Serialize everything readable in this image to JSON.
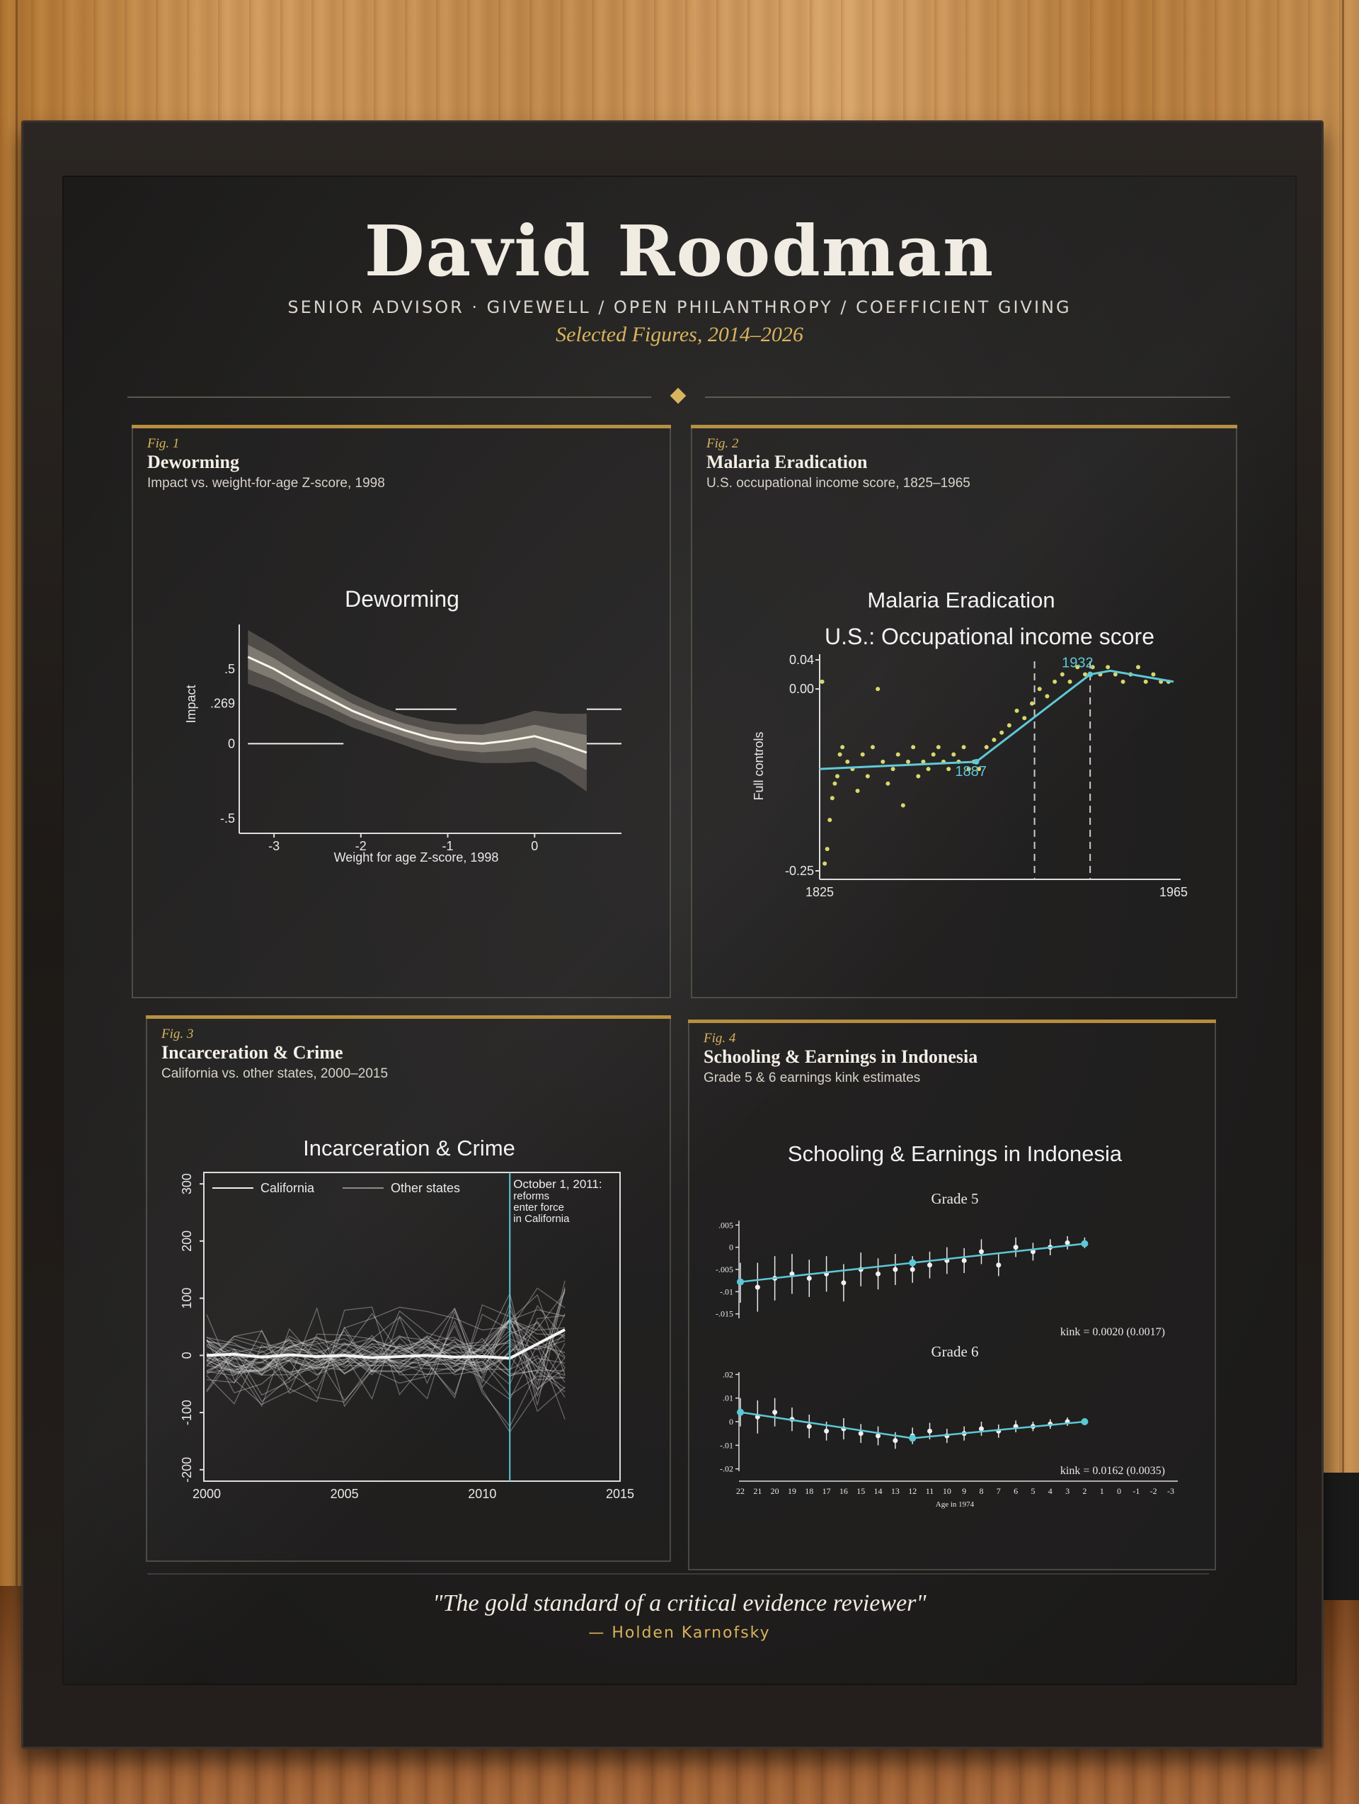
{
  "poster": {
    "name": "David Roodman",
    "role": "SENIOR ADVISOR  ·  GIVEWELL / OPEN PHILANTHROPY / COEFFICIENT GIVING",
    "selected": "Selected Figures, 2014–2026",
    "quote": "\"The gold standard of a critical evidence reviewer\"",
    "attribution": "— Holden Karnofsky"
  },
  "colors": {
    "gold": "#d8b25a",
    "cyan": "#5cc8d6",
    "point_yellow": "#d8d66a"
  },
  "panels": [
    {
      "fig": "Fig. 1",
      "title": "Deworming",
      "subtitle": "Impact vs. weight-for-age Z-score, 1998"
    },
    {
      "fig": "Fig. 2",
      "title": "Malaria Eradication",
      "subtitle": "U.S. occupational income score, 1825–1965"
    },
    {
      "fig": "Fig. 3",
      "title": "Incarceration & Crime",
      "subtitle": "California vs. other states, 2000–2015"
    },
    {
      "fig": "Fig. 4",
      "title": "Schooling & Earnings in Indonesia",
      "subtitle": "Grade 5 & 6 earnings kink estimates"
    }
  ],
  "chart_data": [
    {
      "type": "line",
      "title": "Deworming",
      "xlabel": "Weight for age Z-score, 1998",
      "ylabel": "Impact",
      "xlim": [
        -3.4,
        1.0
      ],
      "ylim": [
        -0.6,
        0.75
      ],
      "xticks": [
        "-3",
        "-2",
        "-1",
        "0"
      ],
      "yticks": [
        ".5",
        ".269",
        "0",
        "-.5"
      ],
      "series": [
        {
          "x": [
            -3.3,
            -3.0,
            -2.7,
            -2.4,
            -2.1,
            -1.8,
            -1.5,
            -1.2,
            -0.9,
            -0.6,
            -0.3,
            0.0,
            0.3,
            0.6
          ],
          "values": [
            0.58,
            0.5,
            0.4,
            0.31,
            0.22,
            0.15,
            0.09,
            0.04,
            0.01,
            0.0,
            0.02,
            0.05,
            0.0,
            -0.06
          ]
        }
      ],
      "reference_segments": [
        {
          "x": [
            -3.3,
            -2.2
          ],
          "y": 0
        },
        {
          "x": [
            -1.6,
            -0.9
          ],
          "y": 0.23
        },
        {
          "x": [
            0.6,
            1.0
          ],
          "y": 0.23
        },
        {
          "x": [
            0.6,
            1.0
          ],
          "y": 0
        }
      ]
    },
    {
      "type": "scatter",
      "title": "Malaria Eradication",
      "subtitle": "U.S.: Occupational income score",
      "ylabel": "Full controls",
      "xlim": [
        1825,
        1965
      ],
      "ylim": [
        -0.25,
        0.04
      ],
      "xticks": [
        "1825",
        "1965"
      ],
      "yticks": [
        "0.04",
        "0.00",
        "-0.25"
      ],
      "breakpoints": [
        {
          "x": 1887,
          "label": "1887"
        },
        {
          "x": 1932,
          "label": "1932"
        }
      ],
      "vlines": [
        1910,
        1932
      ],
      "fit": {
        "x": [
          1825,
          1887,
          1932,
          1940,
          1965
        ],
        "values": [
          -0.11,
          -0.1,
          0.02,
          0.025,
          0.01
        ]
      },
      "points": {
        "x": [
          1826,
          1827,
          1828,
          1829,
          1830,
          1831,
          1832,
          1833,
          1834,
          1836,
          1838,
          1840,
          1842,
          1844,
          1846,
          1848,
          1850,
          1852,
          1854,
          1856,
          1858,
          1860,
          1862,
          1864,
          1866,
          1868,
          1870,
          1872,
          1874,
          1876,
          1878,
          1880,
          1882,
          1884,
          1886,
          1888,
          1891,
          1894,
          1897,
          1900,
          1903,
          1906,
          1909,
          1912,
          1915,
          1918,
          1921,
          1924,
          1927,
          1930,
          1933,
          1936,
          1939,
          1942,
          1945,
          1948,
          1951,
          1954,
          1957,
          1960,
          1963
        ],
        "values": [
          0.01,
          -0.24,
          -0.22,
          -0.18,
          -0.15,
          -0.13,
          -0.12,
          -0.09,
          -0.08,
          -0.1,
          -0.11,
          -0.14,
          -0.09,
          -0.12,
          -0.08,
          0.0,
          -0.1,
          -0.13,
          -0.11,
          -0.09,
          -0.16,
          -0.1,
          -0.08,
          -0.12,
          -0.1,
          -0.11,
          -0.09,
          -0.08,
          -0.1,
          -0.11,
          -0.09,
          -0.1,
          -0.08,
          -0.11,
          -0.1,
          -0.11,
          -0.08,
          -0.07,
          -0.06,
          -0.05,
          -0.03,
          -0.04,
          -0.02,
          0.0,
          -0.01,
          0.01,
          0.02,
          0.01,
          0.03,
          0.02,
          0.03,
          0.02,
          0.03,
          0.02,
          0.01,
          0.02,
          0.03,
          0.01,
          0.02,
          0.01,
          0.01
        ]
      }
    },
    {
      "type": "line",
      "title": "Incarceration & Crime",
      "xlim": [
        2000,
        2015
      ],
      "ylim": [
        -220,
        320
      ],
      "xticks": [
        "2000",
        "2005",
        "2010",
        "2015"
      ],
      "yticks": [
        "300",
        "200",
        "100",
        "0",
        "-100",
        "-200"
      ],
      "legend": [
        "California",
        "Other states"
      ],
      "legend_position": "top-left",
      "vline": {
        "x": 2011,
        "label": [
          "October 1, 2011:",
          "reforms",
          "enter force",
          "in California"
        ]
      },
      "series": [
        {
          "name": "California",
          "x": [
            2000,
            2001,
            2002,
            2003,
            2004,
            2005,
            2006,
            2007,
            2008,
            2009,
            2010,
            2011,
            2012,
            2013
          ],
          "values": [
            0,
            2,
            -3,
            1,
            -2,
            0,
            -4,
            -2,
            0,
            -3,
            -2,
            -5,
            20,
            45
          ]
        }
      ]
    },
    {
      "type": "scatter",
      "title": "Schooling & Earnings in Indonesia",
      "xlabel": "Age in 1974",
      "xticks": [
        "22",
        "21",
        "20",
        "19",
        "18",
        "17",
        "16",
        "15",
        "14",
        "13",
        "12",
        "11",
        "10",
        "9",
        "8",
        "7",
        "6",
        "5",
        "4",
        "3",
        "2",
        "1",
        "0",
        "-1",
        "-2",
        "-3"
      ],
      "panels": [
        {
          "title": "Grade 5",
          "yticks": [
            ".005",
            "0",
            "-.005",
            "-.01",
            "-.015"
          ],
          "ylim": [
            -0.016,
            0.006
          ],
          "annotation": "kink = 0.0020 (0.0017)",
          "ages": [
            22,
            21,
            20,
            19,
            18,
            17,
            16,
            15,
            14,
            13,
            12,
            11,
            10,
            9,
            8,
            7,
            6,
            5,
            4,
            3,
            2
          ],
          "values": [
            -0.008,
            -0.009,
            -0.007,
            -0.006,
            -0.007,
            -0.006,
            -0.008,
            -0.005,
            -0.006,
            -0.005,
            -0.005,
            -0.004,
            -0.003,
            -0.003,
            -0.001,
            -0.004,
            0.0,
            -0.001,
            0.0,
            0.001,
            0.001
          ],
          "ci": [
            0.0045,
            0.0055,
            0.005,
            0.0045,
            0.0042,
            0.004,
            0.0042,
            0.0038,
            0.0035,
            0.0035,
            0.003,
            0.003,
            0.003,
            0.0028,
            0.0028,
            0.0025,
            0.0022,
            0.002,
            0.0018,
            0.0015,
            0.0012
          ]
        },
        {
          "title": "Grade 6",
          "yticks": [
            ".02",
            ".01",
            "0",
            "-.01",
            "-.02"
          ],
          "ylim": [
            -0.021,
            0.021
          ],
          "annotation": "kink = 0.0162 (0.0035)",
          "ages": [
            22,
            21,
            20,
            19,
            18,
            17,
            16,
            15,
            14,
            13,
            12,
            11,
            10,
            9,
            8,
            7,
            6,
            5,
            4,
            3,
            2
          ],
          "values": [
            0.004,
            0.002,
            0.004,
            0.001,
            -0.002,
            -0.004,
            -0.003,
            -0.005,
            -0.006,
            -0.008,
            -0.006,
            -0.004,
            -0.006,
            -0.005,
            -0.003,
            -0.004,
            -0.002,
            -0.002,
            -0.001,
            0.0,
            0.0
          ],
          "ci": [
            0.006,
            0.007,
            0.006,
            0.005,
            0.005,
            0.004,
            0.0045,
            0.004,
            0.004,
            0.0035,
            0.0035,
            0.0035,
            0.003,
            0.003,
            0.003,
            0.0028,
            0.0025,
            0.002,
            0.002,
            0.0018,
            0.0015
          ]
        }
      ]
    }
  ]
}
